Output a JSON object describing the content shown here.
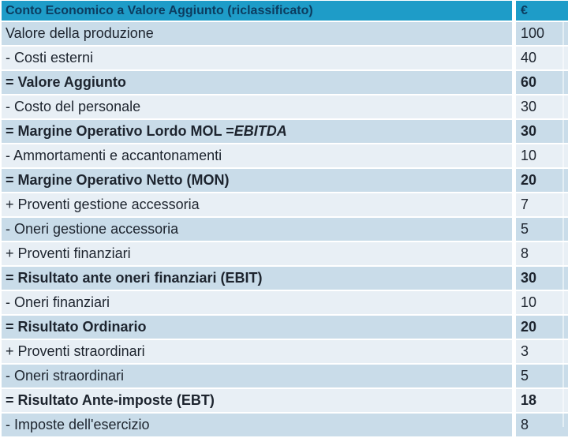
{
  "table": {
    "header": {
      "title": "Conto Economico a Valore Aggiunto (riclassificato)",
      "unit": "€"
    },
    "rows": [
      {
        "label": "Valore della produzione",
        "value": "100",
        "bold": false
      },
      {
        "label": "- Costi esterni",
        "value": "40",
        "bold": false
      },
      {
        "label": "= Valore Aggiunto",
        "value": "60",
        "bold": true
      },
      {
        "label": "- Costo del personale",
        "value": "30",
        "bold": false
      },
      {
        "label": "= Margine Operativo Lordo MOL = ",
        "label_italic": "EBITDA",
        "value": "30",
        "bold": true
      },
      {
        "label": "- Ammortamenti e accantonamenti",
        "value": "10",
        "bold": false
      },
      {
        "label": "= Margine Operativo Netto (MON)",
        "value": "20",
        "bold": true
      },
      {
        "label": "+ Proventi gestione accessoria",
        "value": "7",
        "bold": false
      },
      {
        "label": "- Oneri gestione accessoria",
        "value": "5",
        "bold": false
      },
      {
        "label": "+ Proventi finanziari",
        "value": "8",
        "bold": false
      },
      {
        "label": "= Risultato ante oneri finanziari (EBIT)",
        "value": "30",
        "bold": true
      },
      {
        "label": "- Oneri finanziari",
        "value": "10",
        "bold": false
      },
      {
        "label": "= Risultato Ordinario",
        "value": "20",
        "bold": true
      },
      {
        "label": "+ Proventi straordinari",
        "value": "3",
        "bold": false
      },
      {
        "label": "- Oneri straordinari",
        "value": "5",
        "bold": false
      },
      {
        "label": "= Risultato Ante-imposte (EBT)",
        "value": "18",
        "bold": true
      },
      {
        "label": "- Imposte dell'esercizio",
        "value": "8",
        "bold": false
      }
    ],
    "colors": {
      "header_bg": "#1E9CC8",
      "header_text": "#0C3C5F",
      "row_odd_bg": "#C9DCE9",
      "row_even_bg": "#E8EFF5",
      "body_text": "#1D242E",
      "divider": "#FFFFFF"
    }
  }
}
